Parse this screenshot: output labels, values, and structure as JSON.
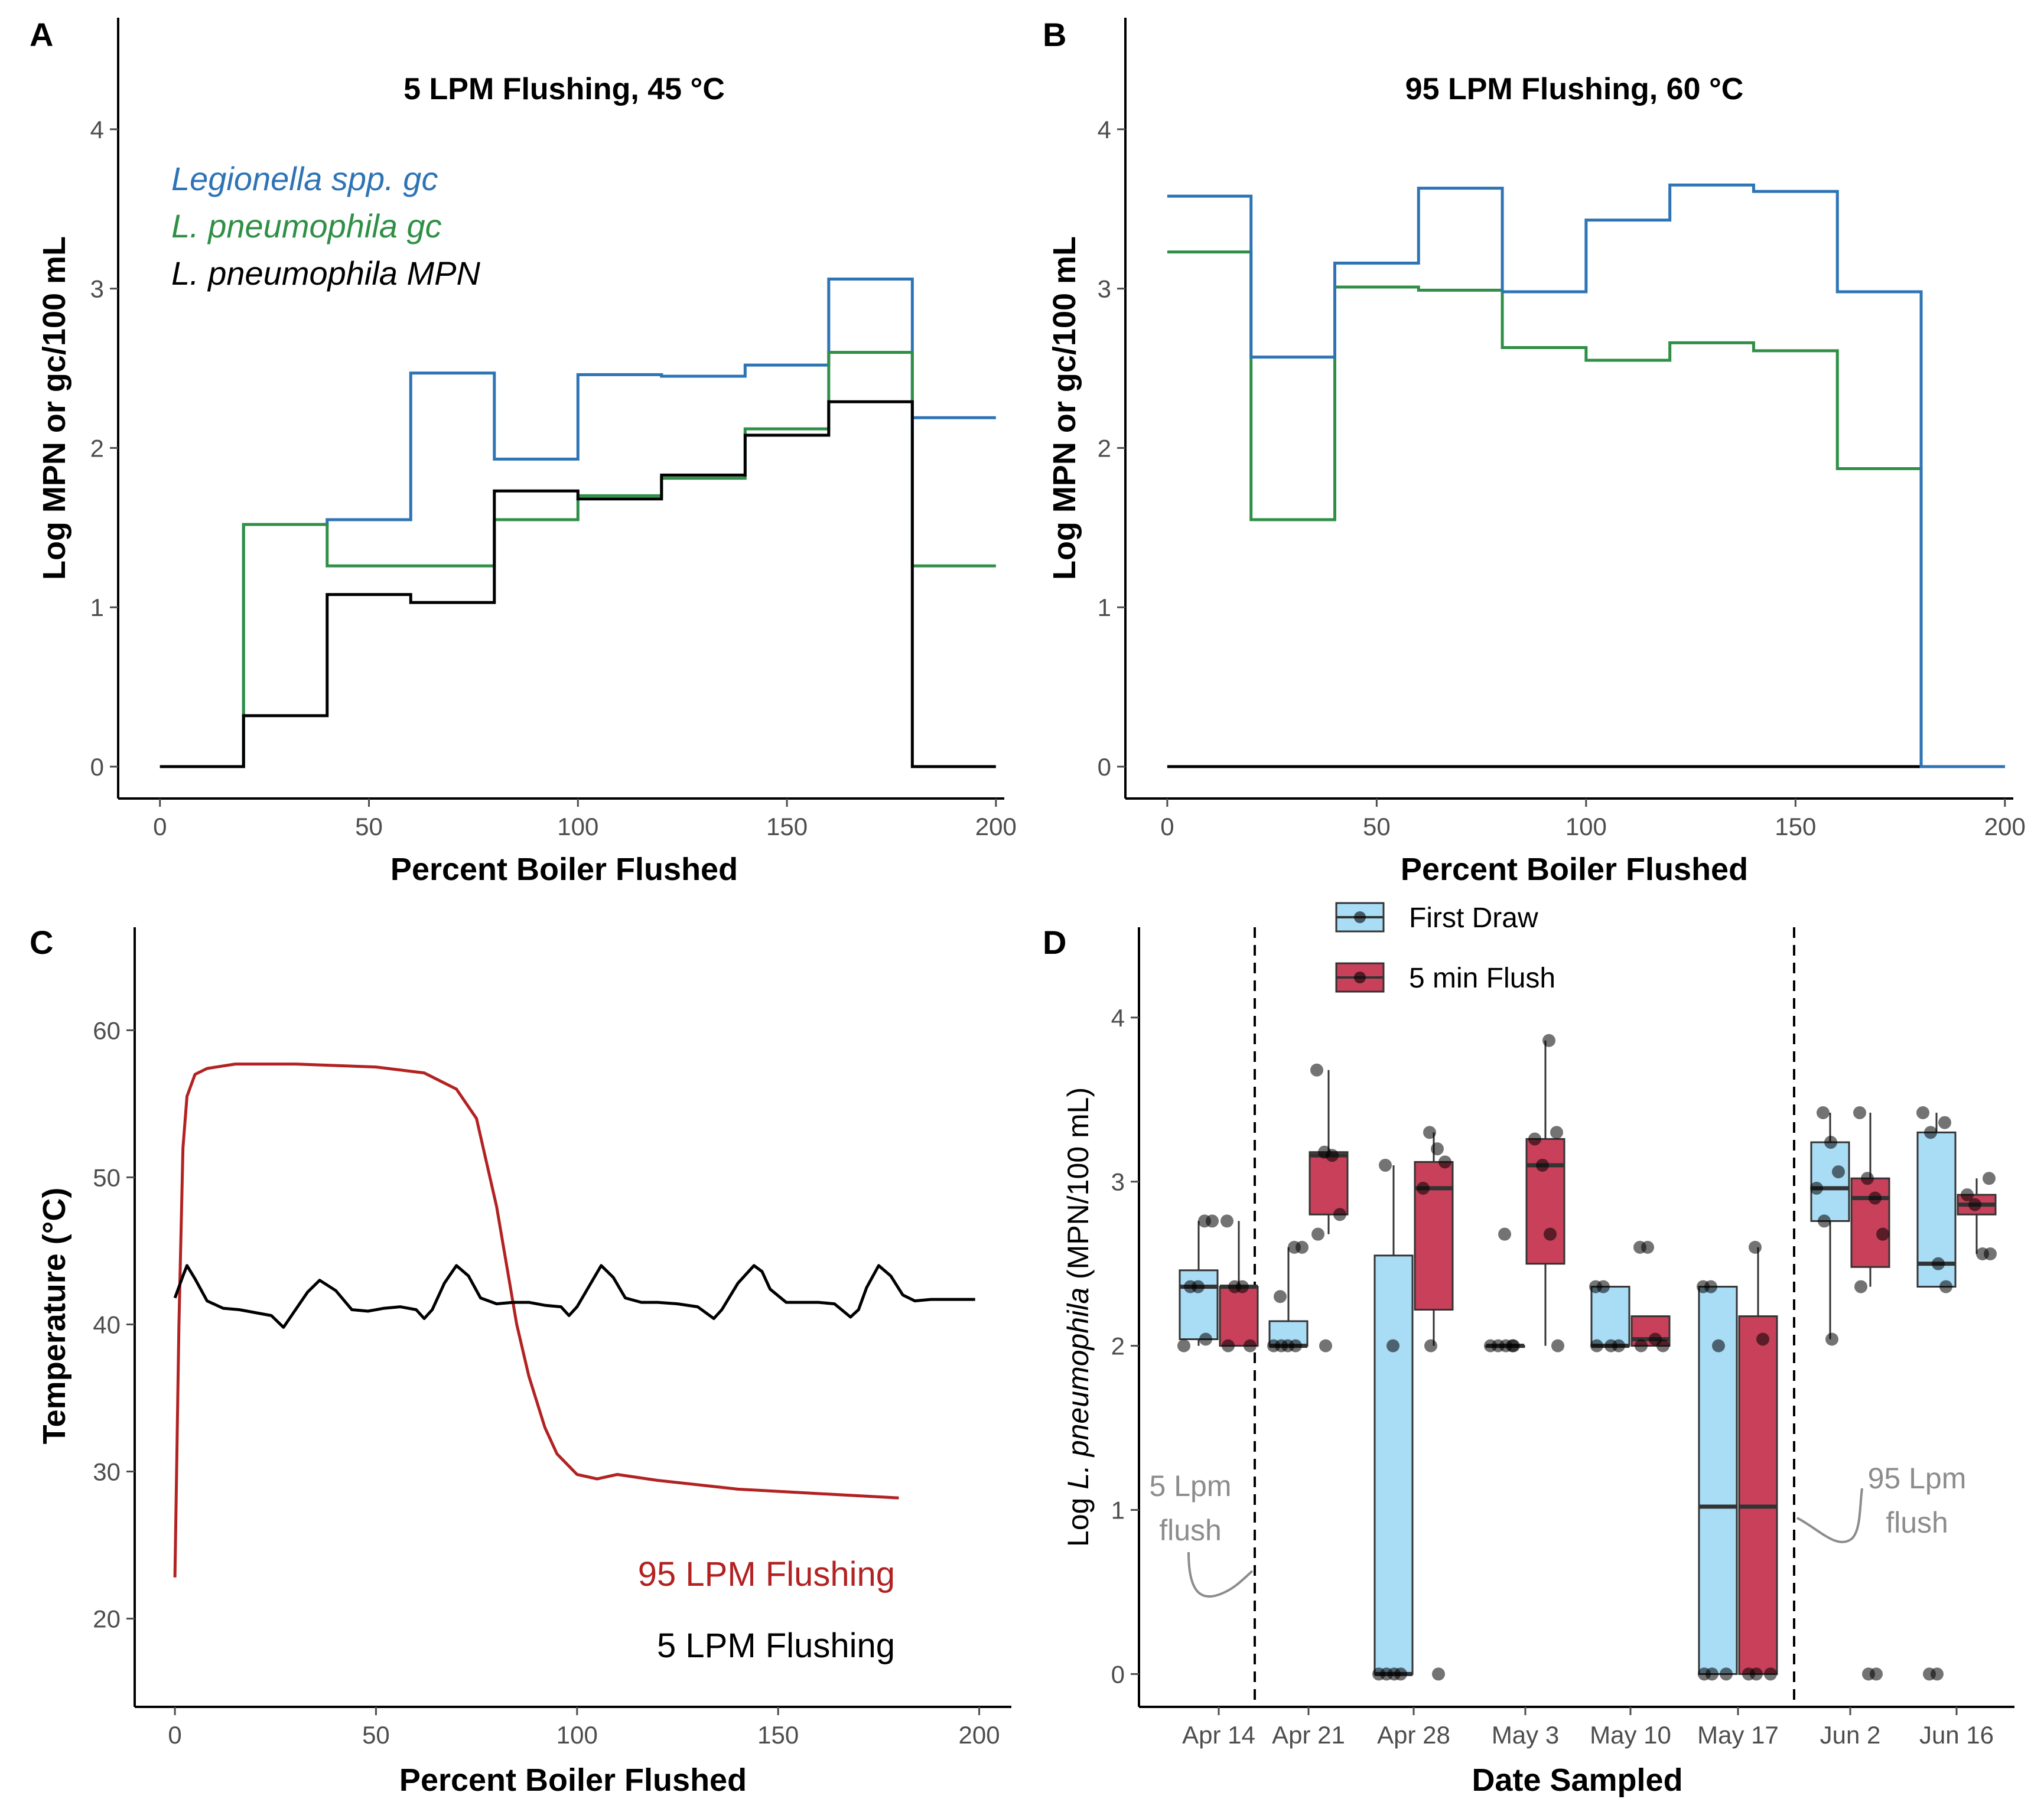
{
  "chart_data": [
    {
      "panel": "A",
      "type": "line",
      "step": true,
      "title": "5 LPM Flushing, 45 °C",
      "xlabel": "Percent Boiler Flushed",
      "ylabel": "Log MPN or gc/100 mL",
      "xlim": [
        -10,
        202
      ],
      "ylim": [
        -0.2,
        4.7
      ],
      "xticks": [
        0,
        50,
        100,
        150,
        200
      ],
      "yticks": [
        0,
        1,
        2,
        3,
        4
      ],
      "legend_position": "top-left",
      "series": [
        {
          "name": "Legionella spp. gc",
          "color": "#2e74b5",
          "x": [
            0,
            20,
            40,
            60,
            80,
            100,
            120,
            140,
            160,
            180,
            200
          ],
          "values": [
            0,
            1.52,
            1.55,
            2.47,
            1.93,
            2.46,
            2.45,
            2.52,
            3.06,
            2.19,
            2.19
          ]
        },
        {
          "name": "L. pneumophila gc",
          "color": "#2f8f46",
          "x": [
            0,
            20,
            40,
            60,
            80,
            100,
            120,
            140,
            160,
            180,
            200
          ],
          "values": [
            0,
            1.52,
            1.26,
            1.26,
            1.55,
            1.7,
            1.81,
            2.12,
            2.6,
            1.26,
            1.26
          ]
        },
        {
          "name": "L. pneumophila MPN",
          "color": "#000000",
          "x": [
            0,
            20,
            40,
            60,
            80,
            100,
            120,
            140,
            160,
            180,
            200
          ],
          "values": [
            0,
            0.32,
            1.08,
            1.03,
            1.73,
            1.68,
            1.83,
            2.08,
            2.29,
            0,
            0
          ]
        }
      ]
    },
    {
      "panel": "B",
      "type": "line",
      "step": true,
      "title": "95 LPM Flushing, 60 °C",
      "xlabel": "Percent Boiler Flushed",
      "ylabel": "Log MPN or gc/100 mL",
      "xlim": [
        -10,
        202
      ],
      "ylim": [
        -0.2,
        4.7
      ],
      "xticks": [
        0,
        50,
        100,
        150,
        200
      ],
      "yticks": [
        0,
        1,
        2,
        3,
        4
      ],
      "series": [
        {
          "name": "Legionella spp. gc",
          "color": "#2e74b5",
          "x": [
            0,
            20,
            40,
            60,
            80,
            100,
            120,
            140,
            160,
            180,
            200
          ],
          "values": [
            3.58,
            2.57,
            3.16,
            3.63,
            2.98,
            3.43,
            3.65,
            3.61,
            2.98,
            0,
            0
          ]
        },
        {
          "name": "L. pneumophila gc",
          "color": "#2f8f46",
          "x": [
            0,
            20,
            40,
            60,
            80,
            100,
            120,
            140,
            160,
            180,
            200
          ],
          "values": [
            3.23,
            1.55,
            3.01,
            2.99,
            2.63,
            2.55,
            2.66,
            2.61,
            1.87,
            0,
            0
          ]
        },
        {
          "name": "L. pneumophila MPN",
          "color": "#000000",
          "x": [
            0,
            20,
            40,
            60,
            80,
            100,
            120,
            140,
            160,
            180,
            200
          ],
          "values": [
            0,
            0,
            0,
            0,
            0,
            0,
            0,
            0,
            0,
            0,
            0
          ]
        }
      ]
    },
    {
      "panel": "C",
      "type": "line",
      "xlabel": "Percent Boiler Flushed",
      "ylabel": "Temperature (°C)",
      "xlim": [
        -10,
        208
      ],
      "ylim": [
        14,
        67
      ],
      "xticks": [
        0,
        50,
        100,
        150,
        200
      ],
      "yticks": [
        20,
        30,
        40,
        50,
        60
      ],
      "legend_position": "bottom-right",
      "series": [
        {
          "name": "95 LPM Flushing",
          "color": "#b22222",
          "x": [
            0,
            1,
            2,
            3,
            5,
            8,
            15,
            30,
            50,
            62,
            70,
            75,
            80,
            85,
            88,
            92,
            95,
            100,
            105,
            110,
            120,
            140,
            160,
            180
          ],
          "values": [
            22.8,
            40,
            52,
            55.5,
            57,
            57.4,
            57.7,
            57.7,
            57.5,
            57.1,
            56,
            54,
            48,
            40,
            36.5,
            33,
            31.2,
            29.8,
            29.5,
            29.8,
            29.4,
            28.8,
            28.5,
            28.2
          ]
        },
        {
          "name": "5 LPM Flushing",
          "color": "#000000",
          "x": [
            0,
            2,
            3,
            5,
            8,
            12,
            16,
            20,
            24,
            27,
            30,
            33,
            36,
            40,
            44,
            48,
            52,
            56,
            60,
            62,
            64,
            67,
            70,
            73,
            76,
            80,
            84,
            88,
            92,
            96,
            98,
            100,
            103,
            106,
            109,
            112,
            116,
            120,
            125,
            130,
            134,
            136,
            140,
            144,
            146,
            148,
            152,
            156,
            160,
            164,
            168,
            170,
            172,
            175,
            178,
            181,
            184,
            188,
            192,
            196,
            199
          ],
          "values": [
            41.8,
            43.3,
            44,
            43.1,
            41.6,
            41.1,
            41.0,
            40.8,
            40.6,
            39.8,
            41.0,
            42.2,
            43.0,
            42.3,
            41.0,
            40.9,
            41.1,
            41.2,
            41.0,
            40.4,
            41.0,
            42.8,
            44.0,
            43.3,
            41.8,
            41.4,
            41.5,
            41.5,
            41.3,
            41.2,
            40.6,
            41.2,
            42.6,
            44.0,
            43.2,
            41.8,
            41.5,
            41.5,
            41.4,
            41.2,
            40.4,
            41.0,
            42.8,
            44.0,
            43.6,
            42.4,
            41.5,
            41.5,
            41.5,
            41.4,
            40.5,
            41.0,
            42.5,
            44.0,
            43.3,
            42.0,
            41.6,
            41.7,
            41.7,
            41.7,
            41.7
          ]
        }
      ]
    },
    {
      "panel": "D",
      "type": "box",
      "xlabel": "Date Sampled",
      "ylabel_prefix": "Log ",
      "ylabel_italic": "L. pneumophila",
      "ylabel_suffix": " (MPN/100 mL)",
      "ylim": [
        -0.2,
        4.55
      ],
      "yticks": [
        0,
        1,
        2,
        3,
        4
      ],
      "categories": [
        "Apr 14",
        "Apr 21",
        "Apr 28",
        "May 3",
        "May 10",
        "May 17",
        "Jun 2",
        "Jun 16"
      ],
      "legend_position": "top",
      "vlines_after_index": [
        0,
        5
      ],
      "annotations": [
        {
          "text_lines": [
            "5 Lpm",
            "flush"
          ],
          "anchor": "left-of-first-divider"
        },
        {
          "text_lines": [
            "95 Lpm",
            "flush"
          ],
          "anchor": "right-of-second-divider"
        }
      ],
      "series": [
        {
          "name": "First Draw",
          "color": "#a9dcf5",
          "boxes": [
            {
              "q1": 2.04,
              "median": 2.36,
              "q3": 2.46,
              "min": 2.0,
              "max": 2.76,
              "points": [
                2.0,
                2.04,
                2.36,
                2.36,
                2.76,
                2.76
              ]
            },
            {
              "q1": 2.0,
              "median": 2.0,
              "q3": 2.15,
              "min": 2.0,
              "max": 2.6,
              "points": [
                2.0,
                2.0,
                2.0,
                2.0,
                2.3,
                2.6,
                2.6
              ]
            },
            {
              "q1": 0,
              "median": 0,
              "q3": 2.55,
              "min": 0,
              "max": 3.1,
              "points": [
                0,
                0,
                0,
                0,
                2.0,
                3.1
              ]
            },
            {
              "q1": 2.0,
              "median": 2.0,
              "q3": 2.0,
              "min": 2.0,
              "max": 2.0,
              "points": [
                2.0,
                2.0,
                2.0,
                2.0,
                2.0,
                2.68
              ]
            },
            {
              "q1": 2.0,
              "median": 2.0,
              "q3": 2.36,
              "min": 2.0,
              "max": 2.36,
              "points": [
                2.0,
                2.0,
                2.0,
                2.36,
                2.36
              ]
            },
            {
              "q1": 0,
              "median": 1.02,
              "q3": 2.36,
              "min": 0,
              "max": 2.36,
              "points": [
                0,
                0,
                0,
                2.0,
                2.36,
                2.36
              ]
            },
            {
              "q1": 2.76,
              "median": 2.96,
              "q3": 3.24,
              "min": 2.04,
              "max": 3.42,
              "points": [
                2.04,
                2.76,
                2.96,
                3.06,
                3.24,
                3.42
              ]
            },
            {
              "q1": 2.36,
              "median": 2.5,
              "q3": 3.3,
              "min": 2.36,
              "max": 3.42,
              "points": [
                2.36,
                2.5,
                3.3,
                3.42,
                3.36,
                0,
                0
              ]
            }
          ]
        },
        {
          "name": "5 min Flush",
          "color": "#c8405a",
          "boxes": [
            {
              "q1": 2.0,
              "median": 2.36,
              "q3": 2.36,
              "min": 2.0,
              "max": 2.76,
              "points": [
                2.0,
                2.0,
                2.36,
                2.36,
                2.76
              ]
            },
            {
              "q1": 2.8,
              "median": 3.16,
              "q3": 3.18,
              "min": 2.68,
              "max": 3.68,
              "points": [
                2.0,
                2.68,
                2.8,
                3.16,
                3.18,
                3.68
              ]
            },
            {
              "q1": 2.22,
              "median": 2.96,
              "q3": 3.12,
              "min": 2.0,
              "max": 3.3,
              "points": [
                0,
                2.0,
                2.96,
                3.12,
                3.2,
                3.3
              ]
            },
            {
              "q1": 2.5,
              "median": 3.1,
              "q3": 3.26,
              "min": 2.0,
              "max": 3.86,
              "points": [
                2.0,
                2.68,
                3.1,
                3.26,
                3.3,
                3.86
              ]
            },
            {
              "q1": 2.0,
              "median": 2.04,
              "q3": 2.18,
              "min": 2.0,
              "max": 2.18,
              "points": [
                2.0,
                2.0,
                2.04,
                2.6,
                2.6
              ]
            },
            {
              "q1": 0,
              "median": 1.02,
              "q3": 2.18,
              "min": 0,
              "max": 2.6,
              "points": [
                0,
                0,
                0,
                2.04,
                2.6
              ]
            },
            {
              "q1": 2.48,
              "median": 2.9,
              "q3": 3.02,
              "min": 2.36,
              "max": 3.42,
              "points": [
                0,
                0,
                2.36,
                2.68,
                2.9,
                3.02,
                3.42
              ]
            },
            {
              "q1": 2.8,
              "median": 2.86,
              "q3": 2.92,
              "min": 2.56,
              "max": 3.02,
              "points": [
                2.56,
                2.56,
                2.86,
                2.92,
                3.02
              ]
            }
          ]
        }
      ]
    }
  ],
  "panel_labels": [
    "A",
    "B",
    "C",
    "D"
  ]
}
